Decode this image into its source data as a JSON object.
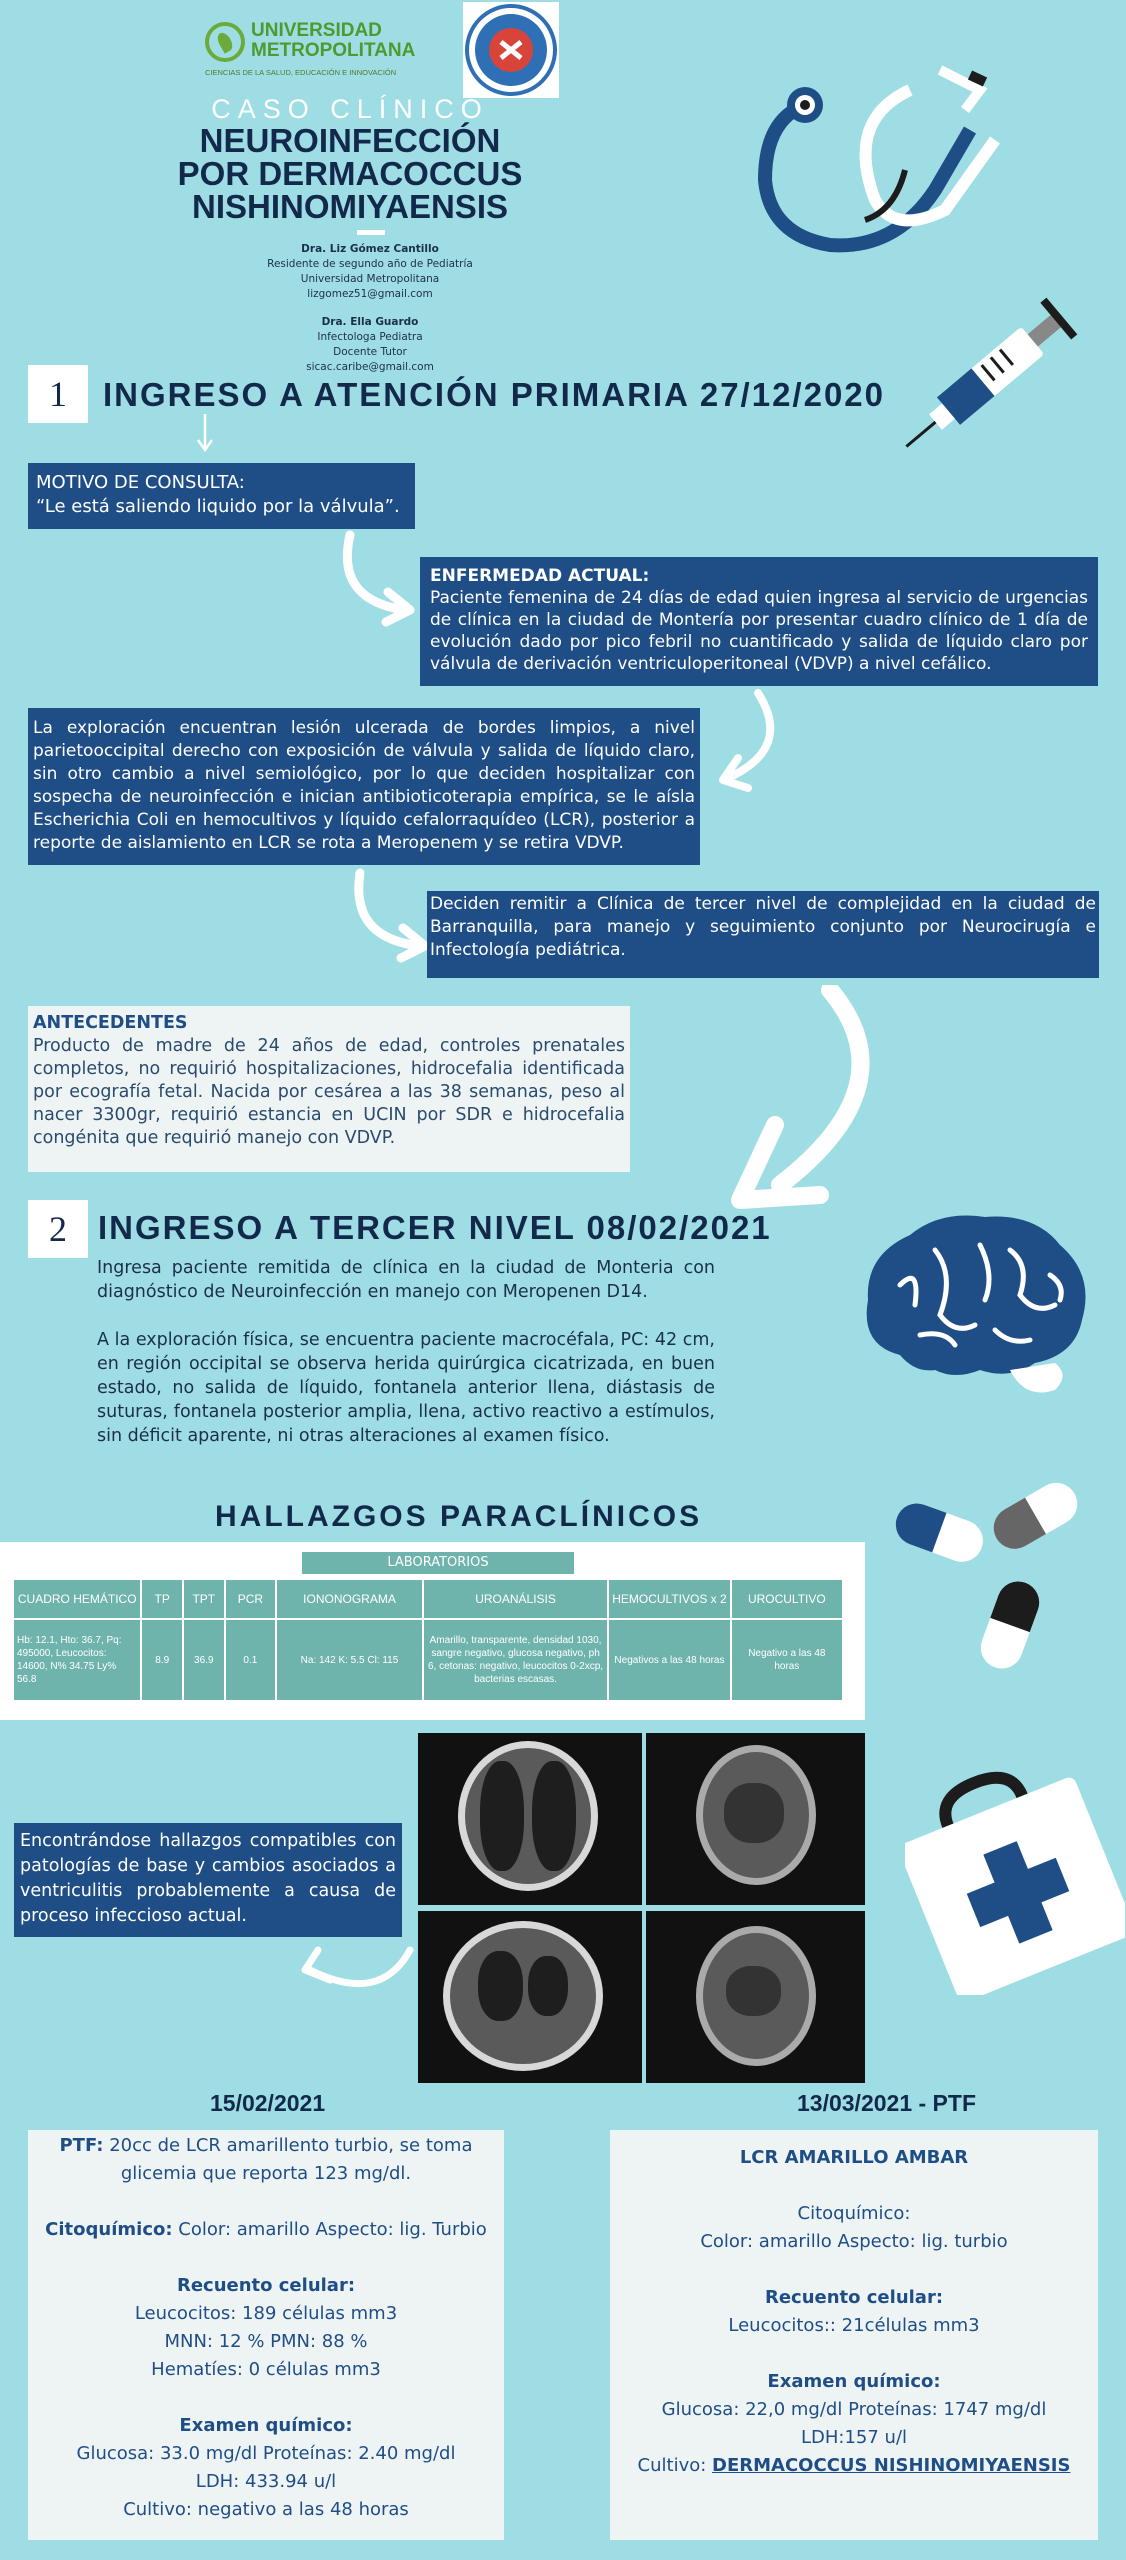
{
  "header": {
    "univ_line1": "UNIVERSIDAD",
    "univ_line2": "METROPOLITANA",
    "univ_tagline": "CIENCIAS DE LA SALUD, EDUCACIÓN E INNOVACIÓN",
    "caso": "CASO CLÍNICO",
    "title_l1": "NEUROINFECCIÓN",
    "title_l2": "POR DERMACOCCUS",
    "title_l3": "NISHINOMIYAENSIS",
    "author1_name": "Dra. Liz Gómez Cantillo",
    "author1_role": "Residente de segundo año de Pediatría",
    "author1_inst": "Universidad Metropolitana",
    "author1_email": "lizgomez51@gmail.com",
    "author2_name": "Dra. Ella Guardo",
    "author2_role": "Infectologa Pediatra",
    "author2_inst": "Docente Tutor",
    "author2_email": "sicac.caribe@gmail.com"
  },
  "section1": {
    "number": "1",
    "title": "INGRESO A ATENCIÓN PRIMARIA 27/12/2020",
    "motivo_label": "MOTIVO DE CONSULTA:",
    "motivo_text": "“Le está saliendo liquido por la válvula”.",
    "enfermedad_label": "ENFERMEDAD ACTUAL:",
    "enfermedad_text": "Paciente femenina de 24 días de edad quien ingresa al servicio de urgencias de clínica en la ciudad de Montería por presentar cuadro clínico de 1 día de evolución dado por pico febril no cuantificado y salida de líquido claro por válvula de derivación ventriculoperitoneal (VDVP) a nivel cefálico.",
    "exploracion_text": "La exploración encuentran lesión ulcerada de bordes limpios, a nivel parietooccipital derecho con exposición de válvula y salida de líquido claro, sin otro cambio a nivel semiológico, por lo que deciden hospitalizar con sospecha de neuroinfección e inician antibioticoterapia empírica, se le aísla Escherichia Coli en hemocultivos y líquido cefalorraquídeo (LCR), posterior a reporte de aislamiento en LCR se rota a Meropenem y se retira VDVP.",
    "remision_text": "Deciden remitir a Clínica de tercer nivel de complejidad en la ciudad de Barranquilla, para manejo y seguimiento conjunto por Neurocirugía e Infectología pediátrica."
  },
  "antecedentes": {
    "label": "ANTECEDENTES",
    "text": "Producto de madre de 24 años de edad, controles prenatales completos, no requirió hospitalizaciones, hidrocefalia identificada por ecografía fetal. Nacida por cesárea a las 38 semanas, peso al nacer 3300gr, requirió estancia en UCIN por SDR e hidrocefalia congénita que requirió manejo con VDVP."
  },
  "section2": {
    "number": "2",
    "title": "INGRESO A TERCER NIVEL 08/02/2021",
    "p1": "Ingresa paciente remitida de clínica en la ciudad de Monteria con diagnóstico de Neuroinfección en manejo con Meropenen D14.",
    "p2": "A la exploración física, se encuentra paciente macrocéfala, PC: 42 cm, en región occipital se observa herida quirúrgica cicatrizada, en buen estado, no salida de líquido, fontanela anterior llena, diástasis de suturas, fontanela posterior amplia, llena, activo reactivo a estímulos, sin déficit aparente, ni otras alteraciones al examen físico."
  },
  "hallazgos": {
    "title": "HALLAZGOS PARACLÍNICOS",
    "lab_header": "LABORATORIOS",
    "columns": [
      "CUADRO HEMÁTICO",
      "TP",
      "TPT",
      "PCR",
      "IONONOGRAMA",
      "UROANÁLISIS",
      "HEMOCULTIVOS x 2",
      "UROCULTIVO"
    ],
    "row": [
      "Hb: 12.1, Hto: 36.7, Pq: 495000, Leucocitos: 14600, N% 34.75 Ly% 56.8",
      "8.9",
      "36.9",
      "0.1",
      "Na: 142 K: 5.5 Cl: 115",
      "Amarillo, transparente, densidad 1030, sangre negativo, glucosa negativo, ph 6, cetonas: negativo, leucocitos 0-2xcp, bacterias escasas.",
      "Negativos a las 48 horas",
      "Negativo a las 48 horas"
    ],
    "ct_summary": "Encontrándose hallazgos compatibles con patologías de base y cambios asociados a ventriculitis probablemente a causa de proceso infeccioso actual."
  },
  "card1": {
    "date": "15/02/2021",
    "ptf_label": "PTF:",
    "ptf_text": " 20cc de LCR amarillento turbio, se toma glicemia que reporta 123 mg/dl.",
    "cito_label": "Citoquímico:",
    "cito_text": " Color: amarillo Aspecto: lig. Turbio",
    "recuento_label": "Recuento celular:",
    "rec1": "Leucocitos: 189 células mm3",
    "rec2": "MNN: 12 % PMN: 88 %",
    "rec3": "Hematíes: 0 células mm3",
    "quimico_label": "Examen químico:",
    "q1": "Glucosa: 33.0 mg/dl Proteínas: 2.40 mg/dl",
    "q2": "LDH: 433.94 u/l",
    "q3": "Cultivo: negativo a las 48 horas"
  },
  "card2": {
    "date": "13/03/2021 - PTF",
    "heading": "LCR AMARILLO AMBAR",
    "cito_label": "Citoquímico:",
    "cito_text": "Color: amarillo Aspecto: lig. turbio",
    "recuento_label": "Recuento celular:",
    "rec1": "Leucocitos:: 21células mm3",
    "quimico_label": "Examen químico:",
    "q1": "Glucosa: 22,0 mg/dl Proteínas: 1747 mg/dl",
    "q2": "LDH:157 u/l",
    "cultivo_label": "Cultivo: ",
    "cultivo_value": "DERMACOCCUS NISHINOMIYAENSIS"
  },
  "icons": [
    "stethoscope-icon",
    "syringe-icon",
    "brain-icon",
    "pills-icon",
    "first-aid-kit-icon",
    "curved-arrow-icon"
  ],
  "colors": {
    "background": "#9fdde4",
    "navy": "#1f4e87",
    "title": "#13294b",
    "table": "#6fb3ad",
    "green": "#4d9a2f"
  }
}
